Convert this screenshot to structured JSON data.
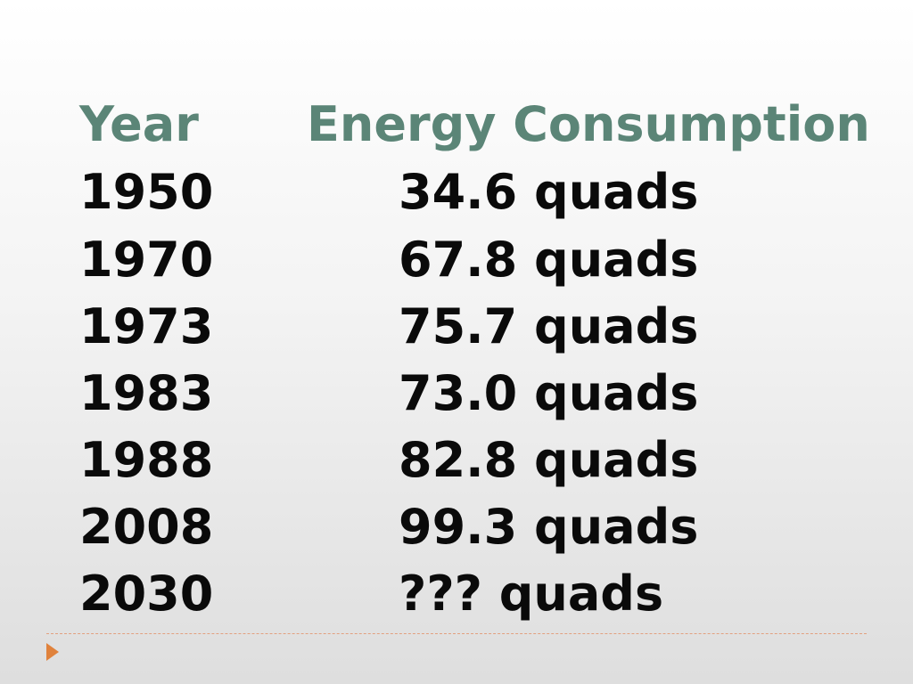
{
  "table": {
    "headers": {
      "year": "Year",
      "energy": "Energy Consumption"
    },
    "rows": [
      {
        "year": "1950",
        "value": "34.6 quads"
      },
      {
        "year": "1970",
        "value": "67.8 quads"
      },
      {
        "year": "1973",
        "value": "75.7 quads"
      },
      {
        "year": "1983",
        "value": "73.0 quads"
      },
      {
        "year": "1988",
        "value": "82.8 quads"
      },
      {
        "year": "2008",
        "value": "99.3 quads"
      },
      {
        "year": "2030",
        "value": "??? quads"
      }
    ]
  },
  "colors": {
    "header_text": "#5b8577",
    "body_text": "#0a0a0a",
    "divider": "#e2a07f",
    "arrow": "#e0823c"
  },
  "icons": {
    "footer_bullet": "orange-triangle-arrow-icon"
  }
}
